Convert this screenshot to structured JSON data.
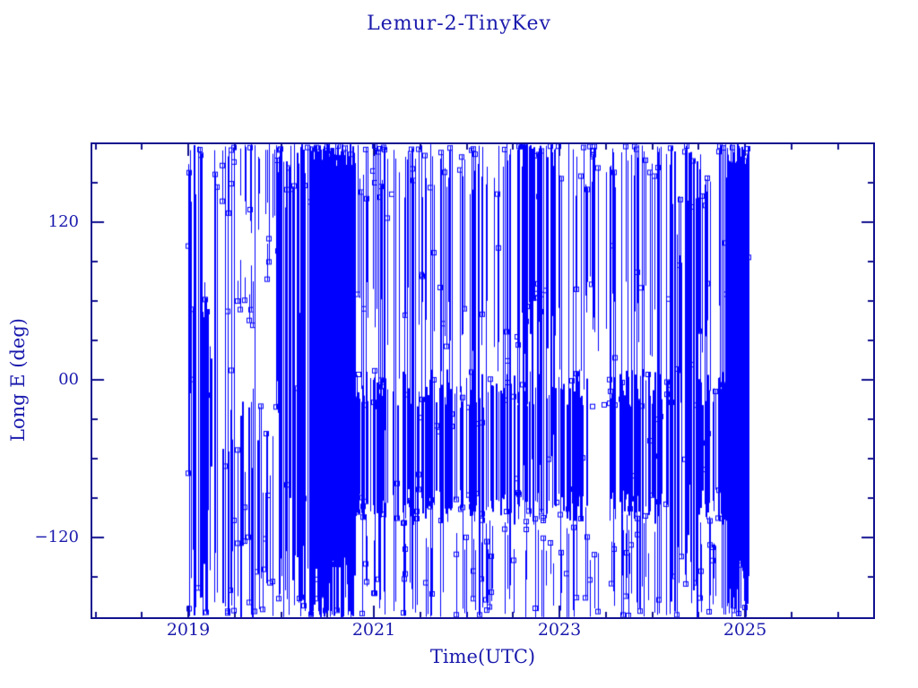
{
  "chart_data": {
    "type": "scatter",
    "title": "Lemur-2-TinyKev",
    "xlabel": "Time(UTC)",
    "ylabel": "Long E (deg)",
    "xlim": [
      2018.0,
      2026.4
    ],
    "ylim": [
      -180,
      180
    ],
    "grid": false,
    "legend": "none",
    "x_ticks": {
      "major_values": [
        2019,
        2021,
        2023,
        2025
      ],
      "labels": [
        "2019",
        "2021",
        "2023",
        "2025"
      ],
      "minor_step_years": 0.5
    },
    "y_ticks": {
      "major_values": [
        120,
        0,
        -120
      ],
      "labels": [
        "120",
        "00",
        "−120"
      ],
      "minor_step_deg": 30
    },
    "series": [
      {
        "name": "Lemur-2-TinyKev",
        "marker": "open-square",
        "marker_size_px": 5,
        "color": "#0000fe",
        "style": "vertical-pass-lines",
        "x_start": 2019.0,
        "x_end": 2025.05,
        "density_timeline": [
          {
            "from": 2019.0,
            "to": 2019.1,
            "prob": 0.85,
            "mode": "normal"
          },
          {
            "from": 2019.1,
            "to": 2019.32,
            "prob": 0.62,
            "mode": "normal"
          },
          {
            "from": 2019.32,
            "to": 2019.95,
            "prob": 0.58,
            "mode": "upper_gap"
          },
          {
            "from": 2019.95,
            "to": 2020.32,
            "prob": 0.68,
            "mode": "normal"
          },
          {
            "from": 2020.32,
            "to": 2020.8,
            "prob": 0.96,
            "mode": "solid"
          },
          {
            "from": 2020.8,
            "to": 2022.55,
            "prob": 0.62,
            "mode": "mid_band"
          },
          {
            "from": 2022.55,
            "to": 2022.95,
            "prob": 0.76,
            "mode": "top_heavy"
          },
          {
            "from": 2022.95,
            "to": 2023.3,
            "prob": 0.63,
            "mode": "mid_band"
          },
          {
            "from": 2023.3,
            "to": 2023.52,
            "prob": 0.52,
            "mode": "mid_gap"
          },
          {
            "from": 2023.52,
            "to": 2024.18,
            "prob": 0.69,
            "mode": "mid_band"
          },
          {
            "from": 2024.18,
            "to": 2024.5,
            "prob": 0.56,
            "mode": "normal"
          },
          {
            "from": 2024.5,
            "to": 2024.82,
            "prob": 0.67,
            "mode": "mid_band"
          },
          {
            "from": 2024.82,
            "to": 2025.05,
            "prob": 0.94,
            "mode": "solid"
          }
        ]
      }
    ]
  },
  "colors": {
    "data": "#0000fe",
    "frame": "#11118f",
    "text": "#1a1aad",
    "background": "#ffffff"
  }
}
